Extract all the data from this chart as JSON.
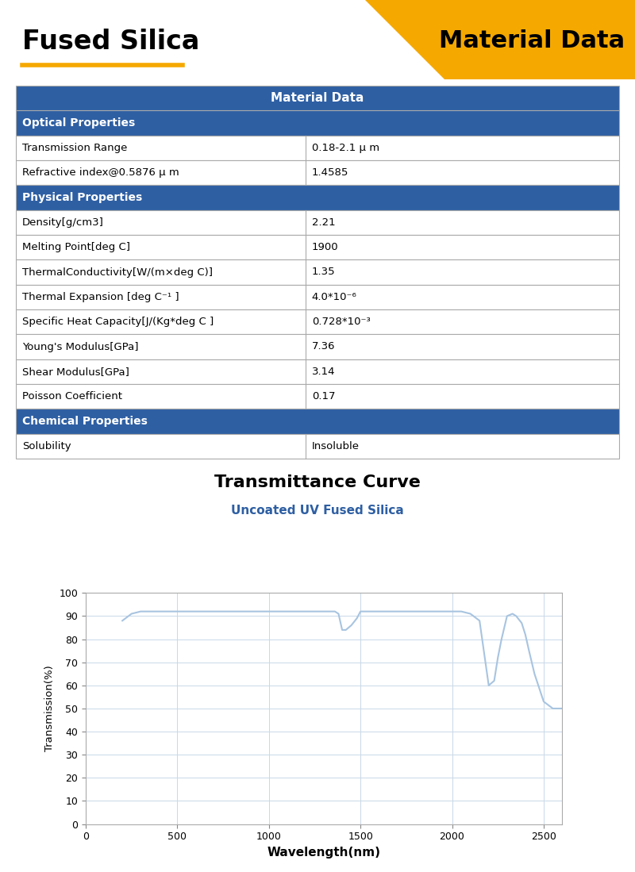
{
  "title_left": "Fused Silica",
  "title_right": "Material Data",
  "header_bg": "#2E5FA3",
  "header_text": "Material Data",
  "section_bg": "#2E5FA3",
  "section_text_color": "#FFFFFF",
  "orange_color": "#F5A800",
  "sections": [
    {
      "section_name": "Optical Properties",
      "rows": [
        [
          "Transmission Range",
          "0.18-2.1 μ m"
        ],
        [
          "Refractive index@0.5876 μ m",
          "1.4585"
        ]
      ]
    },
    {
      "section_name": "Physical Properties",
      "rows": [
        [
          "Density[g/cm3]",
          "2.21"
        ],
        [
          "Melting Point[deg C]",
          "1900"
        ],
        [
          "ThermalConductivity[W/(m×deg C)]",
          "1.35"
        ],
        [
          "Thermal Expansion [deg C⁻¹ ]",
          "4.0*10⁻⁶"
        ],
        [
          "Specific Heat Capacity[J/(Kg*deg C ]",
          "0.728*10⁻³"
        ],
        [
          "Young's Modulus[GPa]",
          "7.36"
        ],
        [
          "Shear Modulus[GPa]",
          "3.14"
        ],
        [
          "Poisson Coefficient",
          "0.17"
        ]
      ]
    },
    {
      "section_name": "Chemical Properties",
      "rows": [
        [
          "Solubility",
          "Insoluble"
        ]
      ]
    }
  ],
  "chart_title": "Transmittance Curve",
  "chart_subtitle": "Uncoated UV Fused Silica",
  "chart_subtitle_color": "#2E5FA3",
  "xlabel": "Wavelength(nm)",
  "ylabel": "Transmission(%)",
  "x_min": 0,
  "x_max": 2600,
  "y_min": 0,
  "y_max": 100,
  "line_color": "#A8C4E0",
  "transmittance_x": [
    200,
    250,
    300,
    350,
    400,
    500,
    600,
    700,
    800,
    900,
    1000,
    1100,
    1200,
    1300,
    1360,
    1380,
    1400,
    1420,
    1450,
    1480,
    1500,
    1600,
    1700,
    1800,
    1900,
    2000,
    2050,
    2100,
    2150,
    2200,
    2230,
    2250,
    2270,
    2300,
    2330,
    2350,
    2380,
    2400,
    2420,
    2450,
    2500,
    2550,
    2600
  ],
  "transmittance_y": [
    88,
    91,
    92,
    92,
    92,
    92,
    92,
    92,
    92,
    92,
    92,
    92,
    92,
    92,
    92,
    91,
    84,
    84,
    86,
    89,
    92,
    92,
    92,
    92,
    92,
    92,
    92,
    91,
    88,
    60,
    62,
    72,
    80,
    90,
    91,
    90,
    87,
    82,
    75,
    65,
    53,
    50,
    50
  ]
}
